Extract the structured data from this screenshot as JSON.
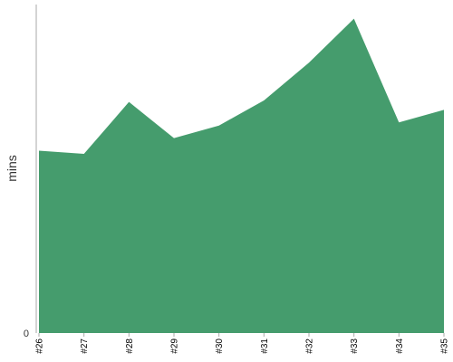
{
  "chart_data": {
    "type": "area",
    "title": "",
    "xlabel": "",
    "ylabel": "mins",
    "categories": [
      "#26",
      "#27",
      "#28",
      "#29",
      "#30",
      "#31",
      "#32",
      "#33",
      "#34",
      "#35"
    ],
    "series": [
      {
        "values": [
          5.8,
          5.7,
          7.35,
          6.2,
          6.6,
          7.4,
          8.6,
          10.0,
          6.7,
          7.1
        ]
      }
    ],
    "ylim": [
      0,
      10.45
    ],
    "y_ticks": [
      "0"
    ],
    "grid": false,
    "legend": "none",
    "colors": {
      "fill": "#459c6d",
      "axis": "#aaaaaa"
    }
  }
}
